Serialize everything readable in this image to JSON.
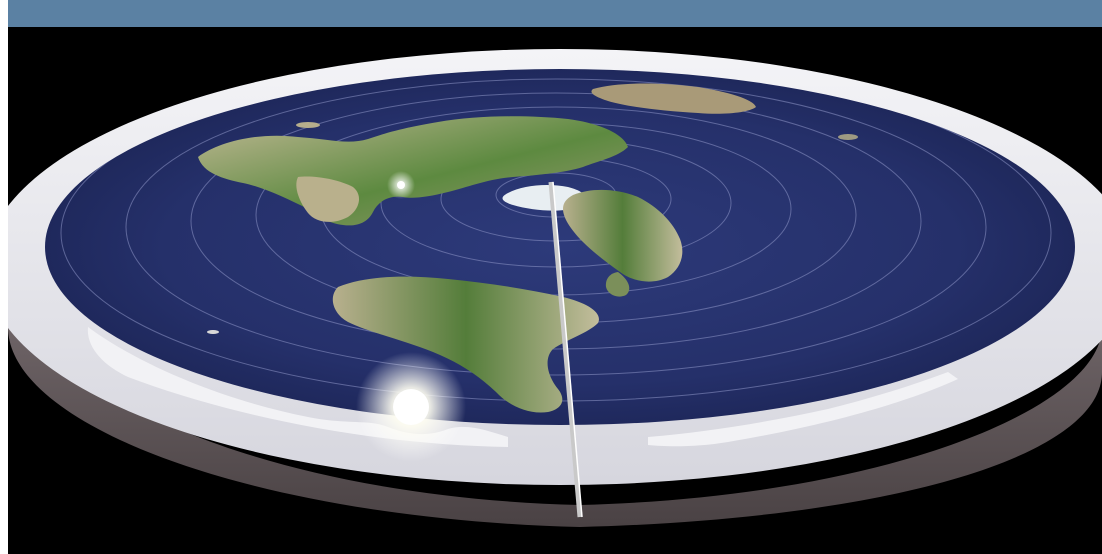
{
  "image": {
    "subject": "flat-earth-model-disc",
    "colors": {
      "banner": "#5b81a3",
      "background": "#000000",
      "ocean": "#25306a",
      "ice_wall": "#e9e9ee",
      "rim_side": "#6a5f62",
      "land_green": "#4f7a3a",
      "land_tan": "#b6ae8c",
      "sun_glow": "#ffffff"
    }
  }
}
